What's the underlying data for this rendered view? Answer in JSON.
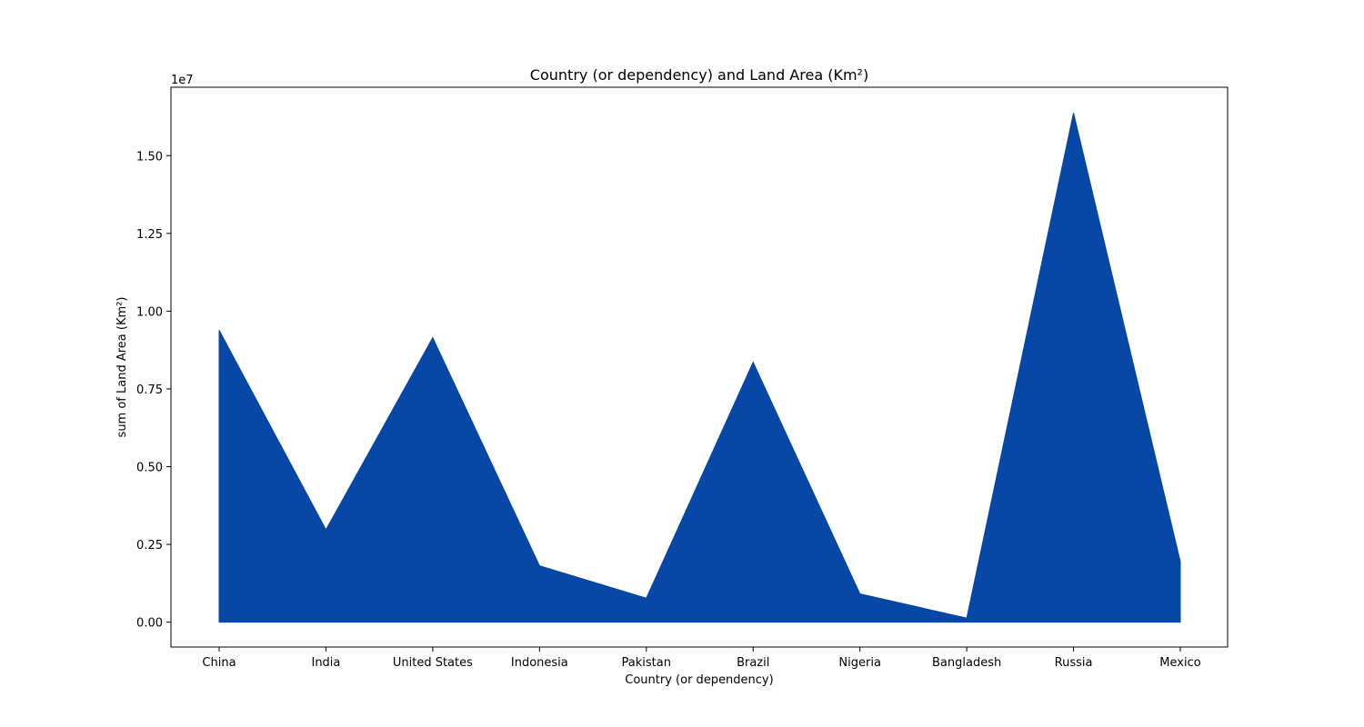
{
  "chart_data": {
    "type": "area",
    "title": "Country (or dependency) and Land Area (Km²)",
    "xlabel": "Country (or dependency)",
    "ylabel": "sum of Land Area (Km²)",
    "y_offset_label": "1e7",
    "categories": [
      "China",
      "India",
      "United States",
      "Indonesia",
      "Pakistan",
      "Brazil",
      "Nigeria",
      "Bangladesh",
      "Russia",
      "Mexico"
    ],
    "values": [
      9388211,
      2973190,
      9147420,
      1811570,
      770880,
      8358140,
      910770,
      130170,
      16376870,
      1943950
    ],
    "ylim": [
      -800000,
      17200000
    ],
    "yticks": [
      0,
      2500000,
      5000000,
      7500000,
      10000000,
      12500000,
      15000000
    ],
    "ytick_labels": [
      "0.00",
      "0.25",
      "0.50",
      "0.75",
      "1.00",
      "1.25",
      "1.50"
    ],
    "color": "#0747a6",
    "grid": false,
    "legend": "none"
  }
}
